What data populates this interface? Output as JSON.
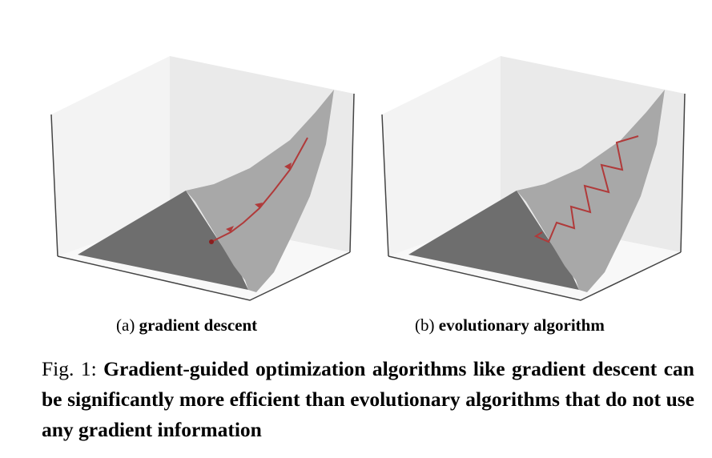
{
  "figure": {
    "panels": [
      {
        "label": "(a)",
        "title": "gradient descent",
        "path_type": "smooth"
      },
      {
        "label": "(b)",
        "title": "evolutionary algorithm",
        "path_type": "zigzag"
      }
    ],
    "caption_prefix": "Fig. 1:",
    "caption_text": "Gradient-guided optimization algorithms like gradient descent can be significantly more efficient than evolutionary algorithms that do not use any gradient information",
    "colors": {
      "pane_back": "#ececec",
      "pane_left": "#f2f2f2",
      "pane_floor": "#f7f7f7",
      "surface_flat": "#6e6e6e",
      "surface_slope": "#a8a8a8",
      "path": "#b03a3a"
    }
  }
}
